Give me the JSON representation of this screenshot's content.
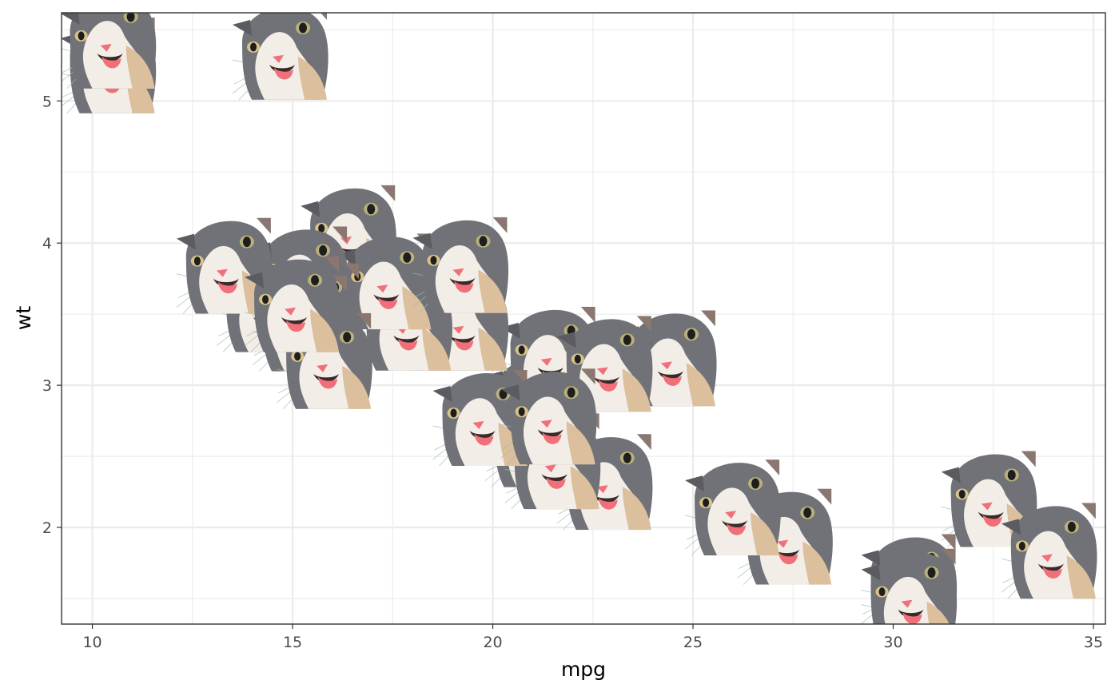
{
  "chart_data": {
    "type": "scatter",
    "title": "",
    "xlabel": "mpg",
    "ylabel": "wt",
    "xlim": [
      9.23,
      35.3
    ],
    "ylim": [
      1.32,
      5.62
    ],
    "x_ticks": [
      10,
      15,
      20,
      25,
      30,
      35
    ],
    "y_ticks": [
      2,
      3,
      4,
      5
    ],
    "x_minor_ticks": [
      12.5,
      17.5,
      22.5,
      27.5,
      32.5
    ],
    "y_minor_ticks": [
      1.5,
      2.5,
      3.5,
      4.5,
      5.5
    ],
    "grid": true,
    "marker": "cat-face-image",
    "colors": {
      "panel_border": "#333333",
      "grid": "#ebebeb",
      "tick_label": "#4d4d4d",
      "cat_fur_dark": "#6e7076",
      "cat_fur_light": "#f3efe8",
      "cat_nose_tongue": "#f0707a",
      "cat_cheek": "#dcbf9c"
    },
    "points": [
      {
        "x": 21.0,
        "y": 2.62
      },
      {
        "x": 21.0,
        "y": 2.875
      },
      {
        "x": 22.8,
        "y": 2.32
      },
      {
        "x": 21.4,
        "y": 3.215
      },
      {
        "x": 18.7,
        "y": 3.44
      },
      {
        "x": 18.1,
        "y": 3.46
      },
      {
        "x": 14.3,
        "y": 3.57
      },
      {
        "x": 24.4,
        "y": 3.19
      },
      {
        "x": 22.8,
        "y": 3.15
      },
      {
        "x": 19.2,
        "y": 3.44
      },
      {
        "x": 17.8,
        "y": 3.44
      },
      {
        "x": 16.4,
        "y": 4.07
      },
      {
        "x": 17.3,
        "y": 3.73
      },
      {
        "x": 15.2,
        "y": 3.78
      },
      {
        "x": 10.4,
        "y": 5.25
      },
      {
        "x": 10.4,
        "y": 5.424
      },
      {
        "x": 14.7,
        "y": 5.345
      },
      {
        "x": 32.4,
        "y": 2.2
      },
      {
        "x": 30.4,
        "y": 1.615
      },
      {
        "x": 33.9,
        "y": 1.835
      },
      {
        "x": 21.5,
        "y": 2.465
      },
      {
        "x": 15.5,
        "y": 3.52
      },
      {
        "x": 15.2,
        "y": 3.435
      },
      {
        "x": 13.3,
        "y": 3.84
      },
      {
        "x": 19.2,
        "y": 3.845
      },
      {
        "x": 27.3,
        "y": 1.935
      },
      {
        "x": 26.0,
        "y": 2.14
      },
      {
        "x": 30.4,
        "y": 1.513
      },
      {
        "x": 15.8,
        "y": 3.17
      },
      {
        "x": 19.7,
        "y": 2.77
      },
      {
        "x": 15.0,
        "y": 3.57
      },
      {
        "x": 21.4,
        "y": 2.78
      }
    ]
  }
}
